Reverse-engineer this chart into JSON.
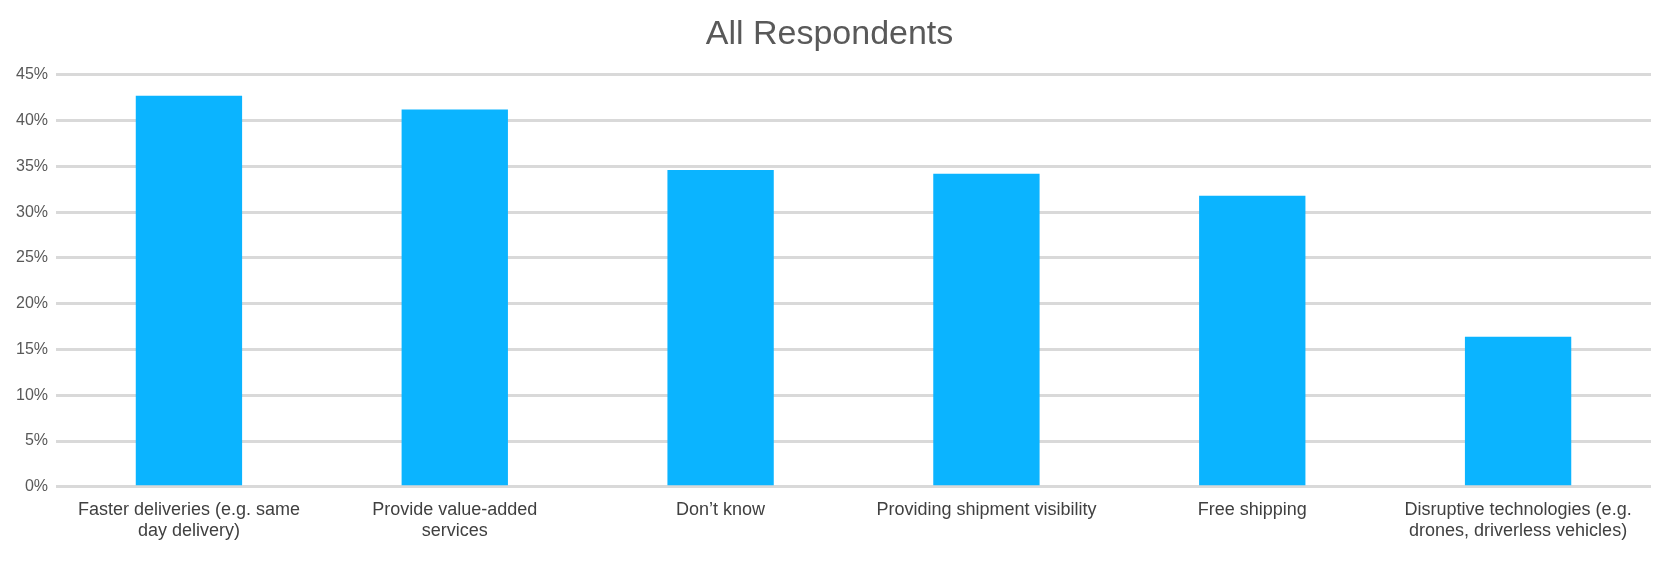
{
  "chart_data": {
    "type": "bar",
    "title": "All Respondents",
    "categories": [
      "Faster deliveries (e.g. same day delivery)",
      "Provide value-added services",
      "Don’t know",
      "Providing shipment visibility",
      "Free shipping",
      "Disruptive technologies (e.g. drones, driverless vehicles)"
    ],
    "values": [
      42.7,
      41.2,
      34.6,
      34.2,
      31.8,
      16.4
    ],
    "color": "#0bb4ff",
    "ylim": [
      0,
      45
    ],
    "yticks": [
      {
        "value": 0,
        "label": "0%"
      },
      {
        "value": 5,
        "label": "5%"
      },
      {
        "value": 10,
        "label": "10%"
      },
      {
        "value": 15,
        "label": "15%"
      },
      {
        "value": 20,
        "label": "20%"
      },
      {
        "value": 25,
        "label": "25%"
      },
      {
        "value": 30,
        "label": "30%"
      },
      {
        "value": 35,
        "label": "35%"
      },
      {
        "value": 40,
        "label": "40%"
      },
      {
        "value": 45,
        "label": "45%"
      }
    ],
    "grid": "y",
    "legend": false
  }
}
